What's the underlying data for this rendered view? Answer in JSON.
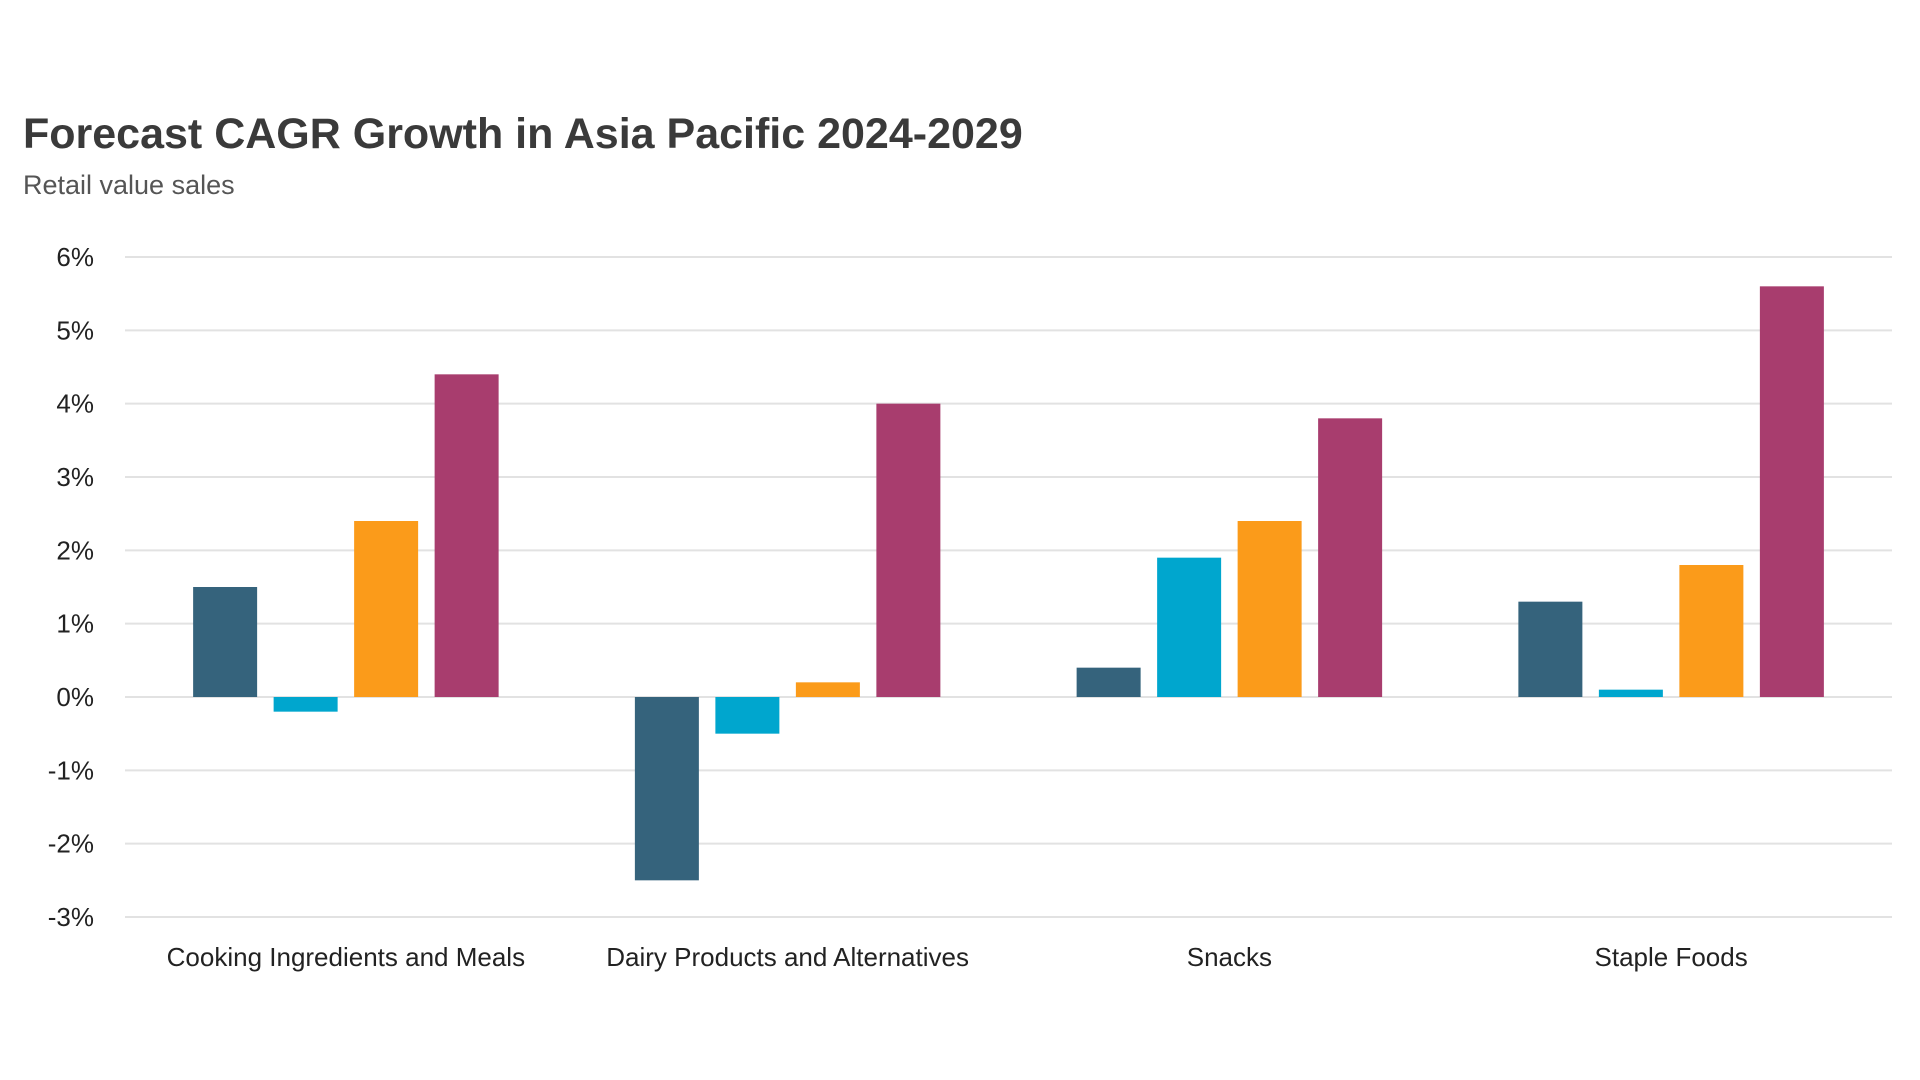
{
  "chart_data": {
    "type": "bar",
    "title": "Forecast CAGR Growth in Asia Pacific 2024-2029",
    "subtitle": "Retail value sales",
    "xlabel": "",
    "ylabel": "",
    "ylim": [
      -3,
      6
    ],
    "yticks": [
      6,
      5,
      4,
      3,
      2,
      1,
      0,
      -1,
      -2,
      -3
    ],
    "ytick_labels": [
      "6%",
      "5%",
      "4%",
      "3%",
      "2%",
      "1%",
      "0%",
      "-1%",
      "-2%",
      "-3%"
    ],
    "grid": true,
    "legend": "none",
    "categories": [
      "Cooking Ingredients and Meals",
      "Dairy Products and Alternatives",
      "Snacks",
      "Staple Foods"
    ],
    "series": [
      {
        "color": "#35637c",
        "values": [
          1.5,
          -2.5,
          0.4,
          1.3
        ]
      },
      {
        "color": "#00a6ce",
        "values": [
          -0.2,
          -0.5,
          1.9,
          0.1
        ]
      },
      {
        "color": "#fb9b1a",
        "values": [
          2.4,
          0.2,
          2.4,
          1.8
        ]
      },
      {
        "color": "#a83d6e",
        "values": [
          4.4,
          4.0,
          3.8,
          5.6
        ]
      }
    ]
  }
}
